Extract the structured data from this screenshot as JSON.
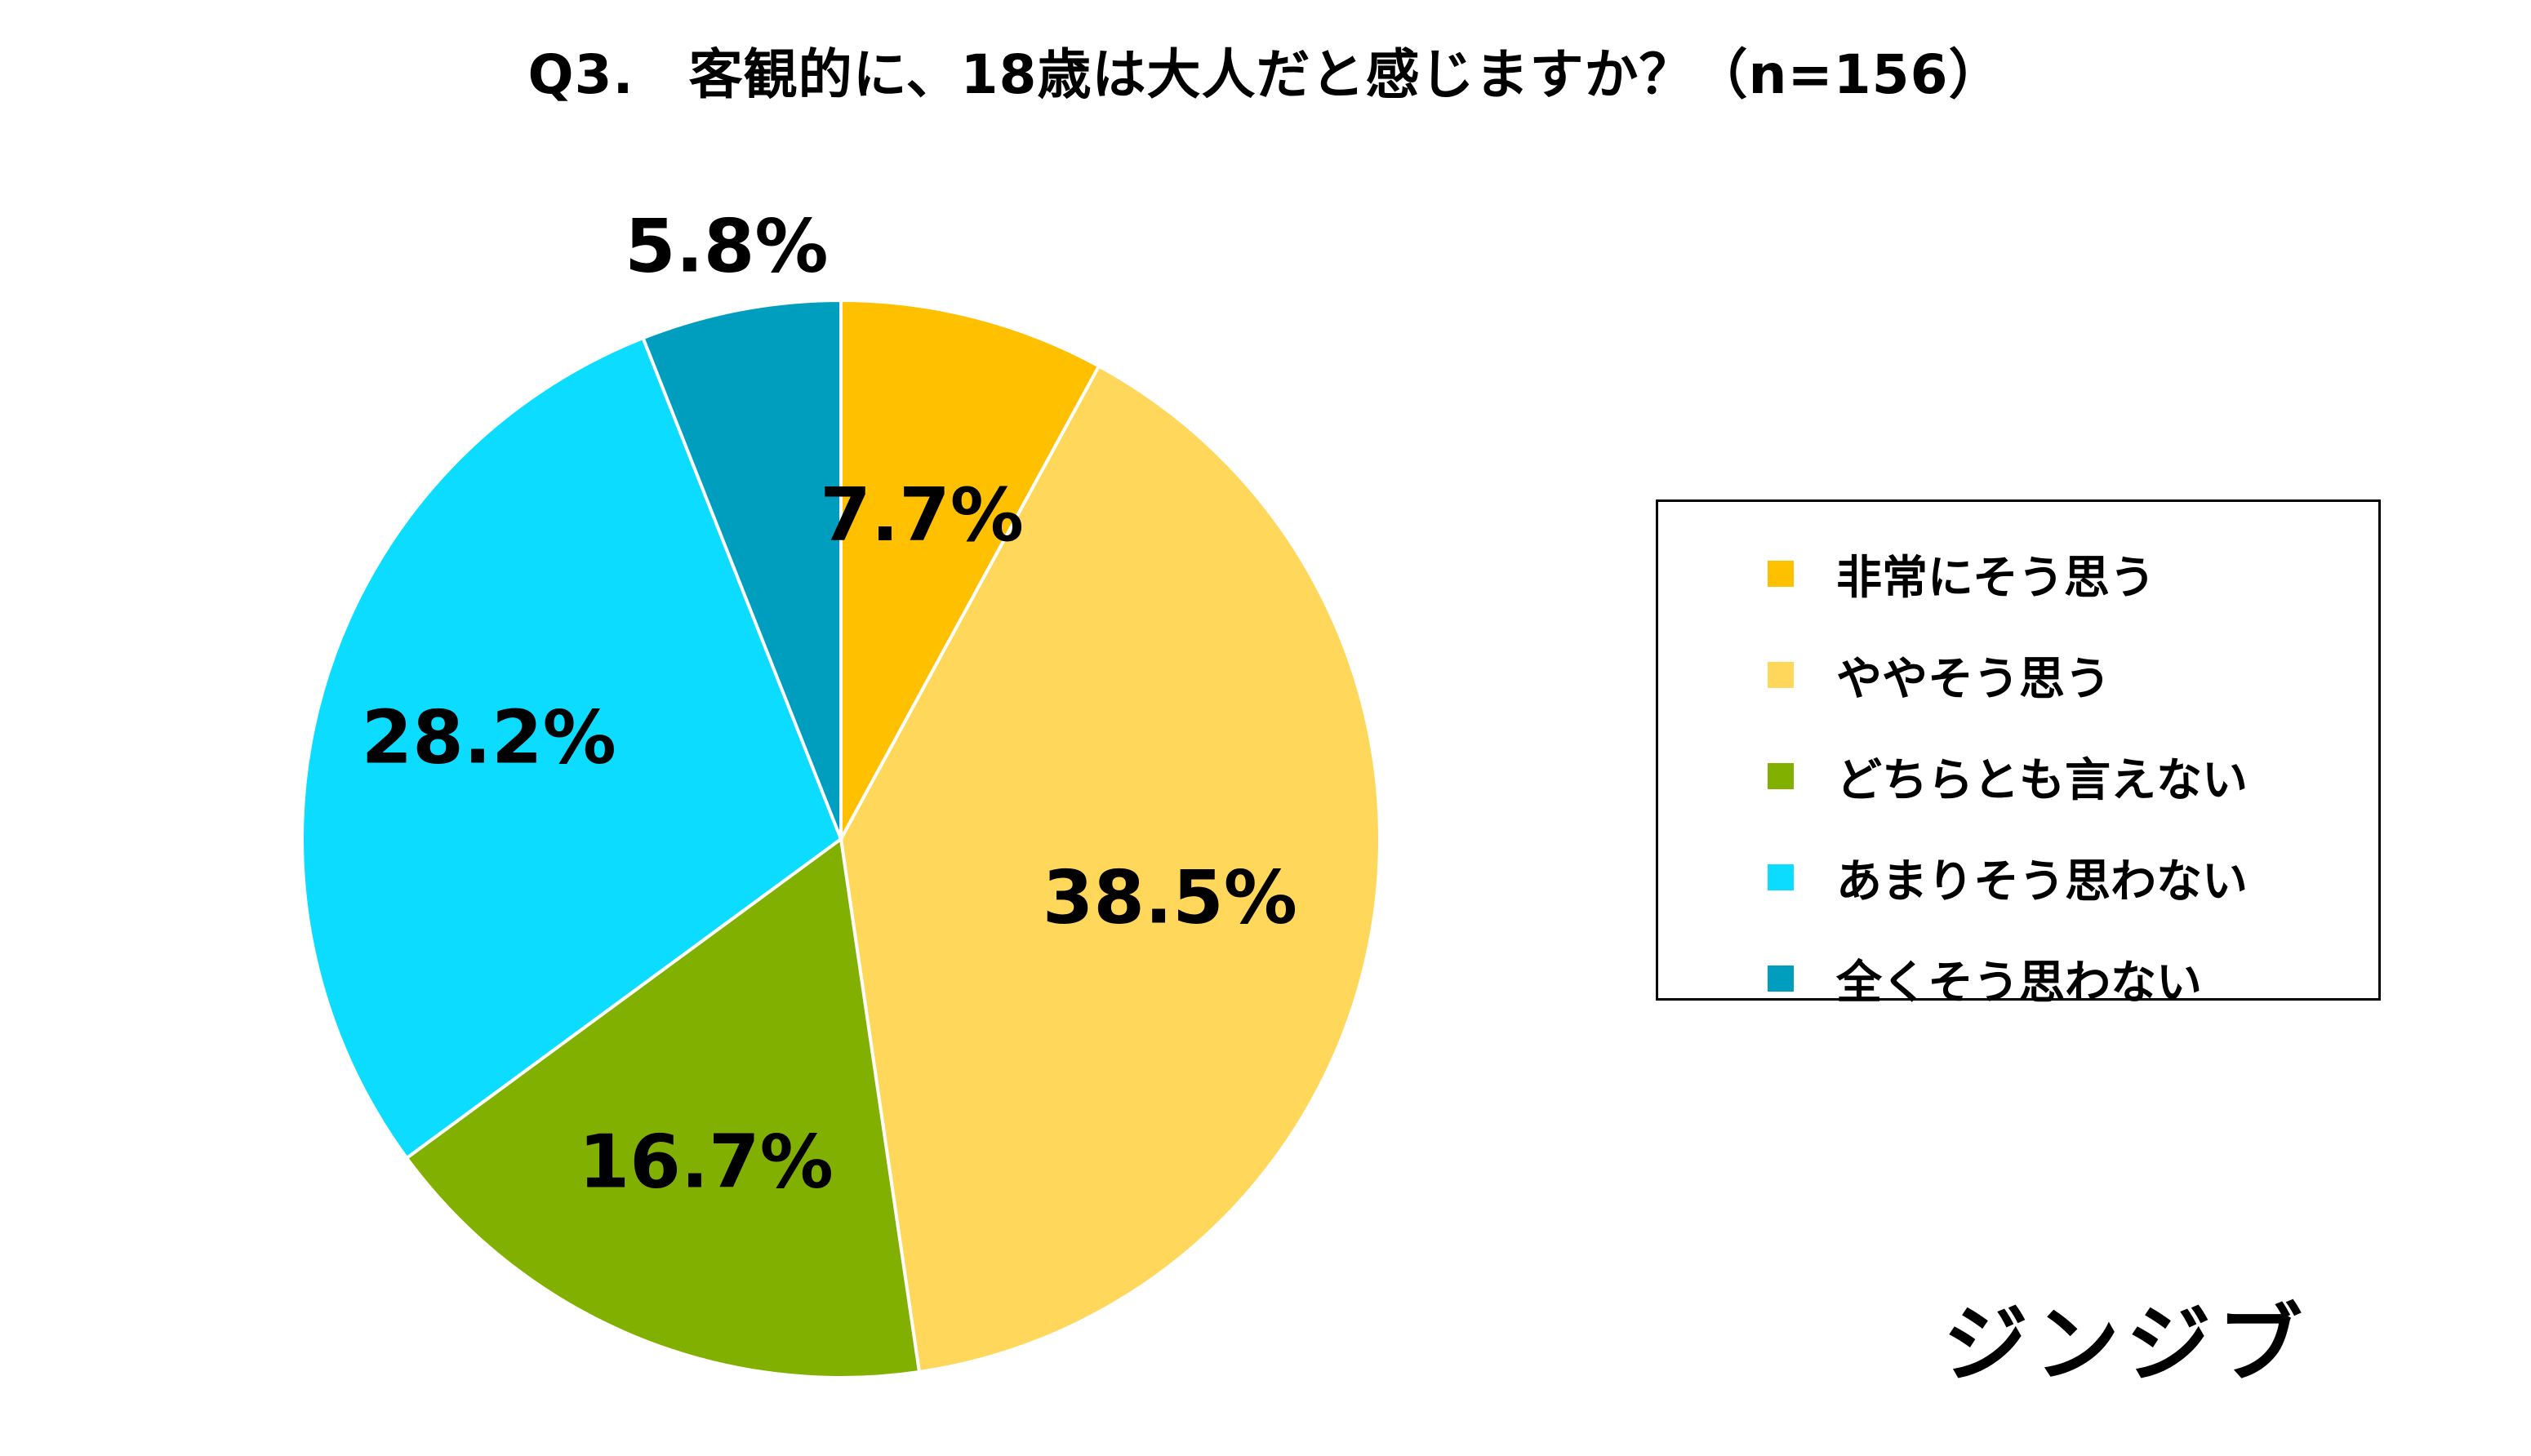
{
  "title": "Q3.　客観的に、18歳は大人だと感じますか？（n=156）",
  "logo_text": "ジンジブ",
  "chart_data": {
    "type": "pie",
    "title": "Q3.　客観的に、18歳は大人だと感じますか？（n=156）",
    "n": 156,
    "start": "12 o'clock",
    "direction": "clockwise",
    "legend_position": "right",
    "slices": [
      {
        "label": "非常にそう思う",
        "value": 7.7,
        "display": "7.7%",
        "color": "#FFC000"
      },
      {
        "label": "ややそう思う",
        "value": 38.5,
        "display": "38.5%",
        "color": "#FFD75A"
      },
      {
        "label": "どちらとも言えない",
        "value": 16.7,
        "display": "16.7%",
        "color": "#82B000"
      },
      {
        "label": "あまりそう思わない",
        "value": 28.2,
        "display": "28.2%",
        "color": "#0CDCFF"
      },
      {
        "label": "全くそう思わない",
        "value": 5.8,
        "display": "5.8%",
        "color": "#009EBE"
      }
    ]
  }
}
